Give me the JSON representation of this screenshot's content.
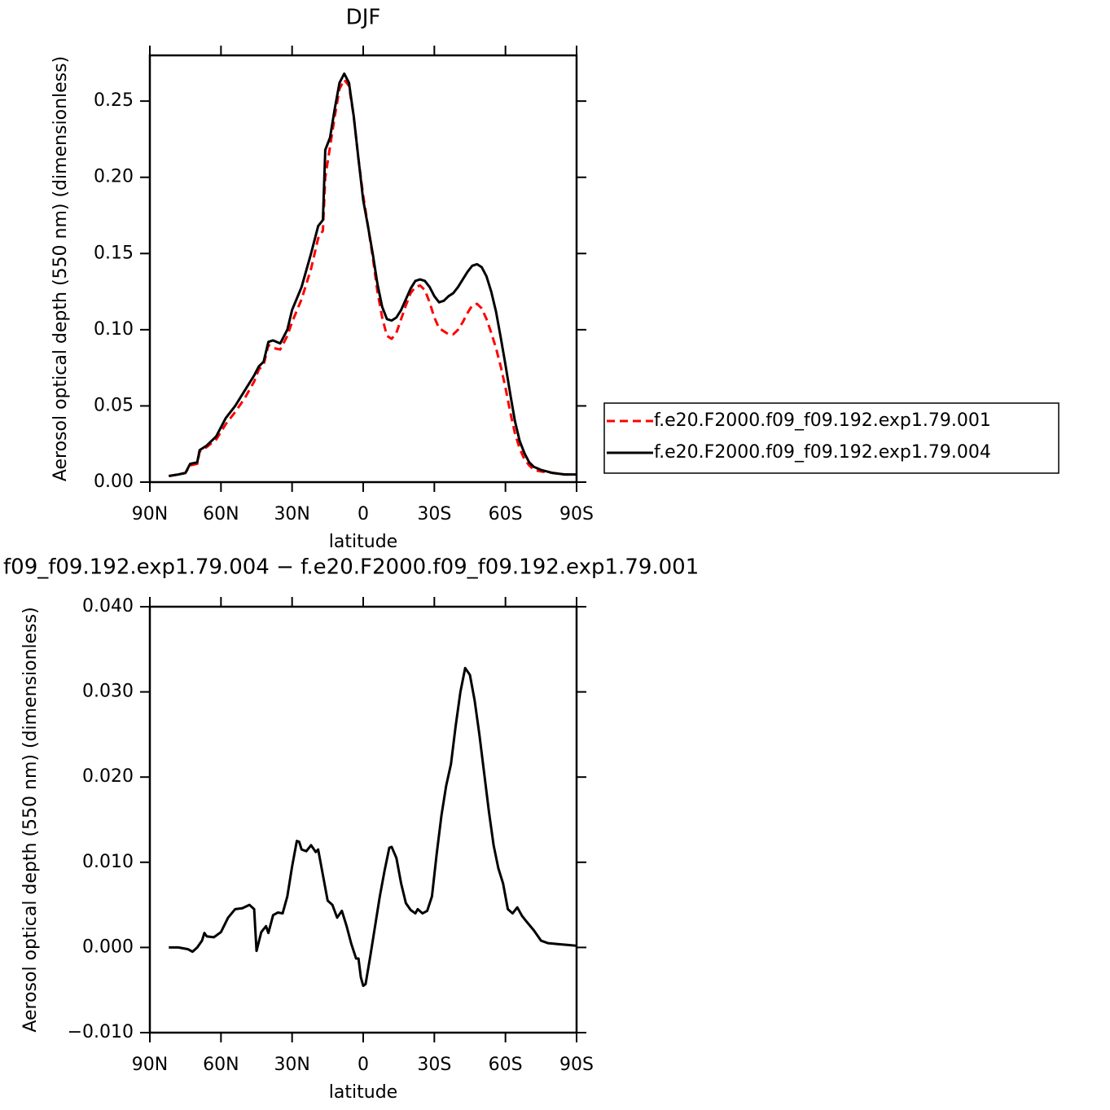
{
  "chart_data": [
    {
      "type": "line",
      "title": "DJF",
      "x_label": "latitude",
      "y_label": "Aerosol optical depth (550 nm) (dimensionless)",
      "xlim": [
        90,
        -90
      ],
      "xticks": [
        {
          "value": 90,
          "label": "90N"
        },
        {
          "value": 60,
          "label": "60N"
        },
        {
          "value": 30,
          "label": "30N"
        },
        0,
        {
          "value": -30,
          "label": "30S"
        },
        {
          "value": -60,
          "label": "60S"
        },
        {
          "value": -90,
          "label": "90S"
        }
      ],
      "ylim": [
        0,
        0.28
      ],
      "yticks": [
        {
          "value": 0,
          "label": "0.00"
        },
        0.05,
        {
          "value": 0.1,
          "label": "0.10"
        },
        0.15,
        {
          "value": 0.2,
          "label": "0.20"
        },
        0.25
      ],
      "legend": "right",
      "x": [
        82,
        78,
        75,
        73,
        70,
        69,
        66,
        62,
        58,
        54,
        50,
        46,
        44,
        42,
        40,
        38,
        35,
        32,
        30,
        26,
        22,
        19,
        17,
        16,
        14,
        12,
        10,
        8,
        6,
        4,
        2,
        0,
        -2,
        -4,
        -6,
        -8,
        -10,
        -12,
        -14,
        -16,
        -18,
        -20,
        -22,
        -24,
        -26,
        -28,
        -30,
        -32,
        -34,
        -36,
        -38,
        -40,
        -42,
        -44,
        -46,
        -48,
        -50,
        -52,
        -54,
        -56,
        -58,
        -60,
        -62,
        -64,
        -66,
        -68,
        -70,
        -72,
        -75,
        -80,
        -85,
        -90
      ],
      "series": [
        {
          "name": "f.e20.F2000.f09_f09.192.exp1.79.001",
          "color": "#ff0000",
          "line_style": "dashed",
          "values": [
            0.004,
            0.005,
            0.006,
            0.011,
            0.012,
            0.02,
            0.023,
            0.028,
            0.038,
            0.046,
            0.055,
            0.066,
            0.074,
            0.077,
            0.09,
            0.088,
            0.087,
            0.096,
            0.105,
            0.12,
            0.14,
            0.16,
            0.165,
            0.2,
            0.22,
            0.24,
            0.258,
            0.264,
            0.26,
            0.24,
            0.212,
            0.188,
            0.168,
            0.148,
            0.125,
            0.108,
            0.096,
            0.094,
            0.098,
            0.107,
            0.116,
            0.124,
            0.128,
            0.129,
            0.126,
            0.118,
            0.108,
            0.101,
            0.099,
            0.097,
            0.097,
            0.1,
            0.105,
            0.111,
            0.116,
            0.117,
            0.114,
            0.107,
            0.098,
            0.088,
            0.076,
            0.062,
            0.046,
            0.032,
            0.022,
            0.015,
            0.011,
            0.008,
            0.007,
            0.006,
            0.005,
            0.005
          ]
        },
        {
          "name": "f.e20.F2000.f09_f09.192.exp1.79.004",
          "color": "#000000",
          "line_style": "solid",
          "values": [
            0.004,
            0.005,
            0.006,
            0.012,
            0.013,
            0.021,
            0.024,
            0.03,
            0.042,
            0.05,
            0.06,
            0.07,
            0.076,
            0.079,
            0.092,
            0.093,
            0.091,
            0.1,
            0.113,
            0.128,
            0.15,
            0.168,
            0.172,
            0.218,
            0.226,
            0.245,
            0.262,
            0.268,
            0.262,
            0.24,
            0.212,
            0.185,
            0.168,
            0.15,
            0.13,
            0.115,
            0.107,
            0.106,
            0.108,
            0.113,
            0.12,
            0.127,
            0.132,
            0.133,
            0.132,
            0.128,
            0.122,
            0.118,
            0.119,
            0.122,
            0.124,
            0.128,
            0.133,
            0.138,
            0.142,
            0.143,
            0.141,
            0.135,
            0.125,
            0.112,
            0.095,
            0.077,
            0.058,
            0.04,
            0.027,
            0.019,
            0.013,
            0.01,
            0.008,
            0.006,
            0.005,
            0.005
          ]
        }
      ]
    },
    {
      "type": "line",
      "title": "f09_f09.192.exp1.79.004 − f.e20.F2000.f09_f09.192.exp1.79.001",
      "x_label": "latitude",
      "y_label": "Aerosol optical depth (550 nm) (dimensionless)",
      "xlim": [
        90,
        -90
      ],
      "xticks": [
        {
          "value": 90,
          "label": "90N"
        },
        {
          "value": 60,
          "label": "60N"
        },
        {
          "value": 30,
          "label": "30N"
        },
        0,
        {
          "value": -30,
          "label": "30S"
        },
        {
          "value": -60,
          "label": "60S"
        },
        {
          "value": -90,
          "label": "90S"
        }
      ],
      "ylim": [
        -0.01,
        0.04
      ],
      "yticks": [
        {
          "value": -0.01,
          "label": "−0.010"
        },
        {
          "value": 0,
          "label": "0.000"
        },
        {
          "value": 0.01,
          "label": "0.010"
        },
        {
          "value": 0.02,
          "label": "0.020"
        },
        {
          "value": 0.03,
          "label": "0.030"
        },
        {
          "value": 0.04,
          "label": "0.040"
        }
      ],
      "color": "#000000",
      "x": [
        82,
        78,
        74,
        72,
        70,
        68,
        67,
        66,
        63,
        60,
        57,
        54,
        51,
        48,
        46,
        45,
        43,
        41,
        40,
        38,
        36,
        34,
        32,
        30,
        28,
        27,
        26,
        24,
        22,
        20,
        19,
        17,
        15,
        13,
        11,
        9,
        7,
        5,
        3,
        2,
        1,
        0,
        -1,
        -3,
        -5,
        -7,
        -9,
        -11,
        -12,
        -14,
        -16,
        -18,
        -20,
        -22,
        -23,
        -25,
        -27,
        -29,
        -31,
        -33,
        -35,
        -37,
        -39,
        -41,
        -43,
        -45,
        -47,
        -49,
        -51,
        -53,
        -55,
        -57,
        -59,
        -61,
        -63,
        -65,
        -67,
        -69,
        -72,
        -75,
        -78,
        -82,
        -86,
        -90
      ],
      "values": [
        0,
        0,
        -0.0002,
        -0.0005,
        0,
        0.0008,
        0.0017,
        0.0013,
        0.0012,
        0.0018,
        0.0035,
        0.0045,
        0.0046,
        0.005,
        0.0045,
        -0.0004,
        0.0018,
        0.0025,
        0.0017,
        0.0038,
        0.0041,
        0.004,
        0.006,
        0.0095,
        0.0125,
        0.0124,
        0.0115,
        0.0113,
        0.012,
        0.0112,
        0.0115,
        0.0085,
        0.0055,
        0.005,
        0.0035,
        0.0043,
        0.0025,
        0.0004,
        -0.0013,
        -0.0013,
        -0.0035,
        -0.0045,
        -0.0043,
        -0.001,
        0.0025,
        0.006,
        0.009,
        0.0117,
        0.0118,
        0.0105,
        0.0075,
        0.0052,
        0.0044,
        0.004,
        0.0045,
        0.004,
        0.0043,
        0.006,
        0.011,
        0.0155,
        0.019,
        0.0215,
        0.026,
        0.03,
        0.0328,
        0.032,
        0.029,
        0.025,
        0.0205,
        0.016,
        0.012,
        0.0093,
        0.0075,
        0.0045,
        0.004,
        0.0047,
        0.0037,
        0.003,
        0.002,
        0.0008,
        0.0005,
        0.0004,
        0.0003,
        0.0002
      ]
    }
  ]
}
